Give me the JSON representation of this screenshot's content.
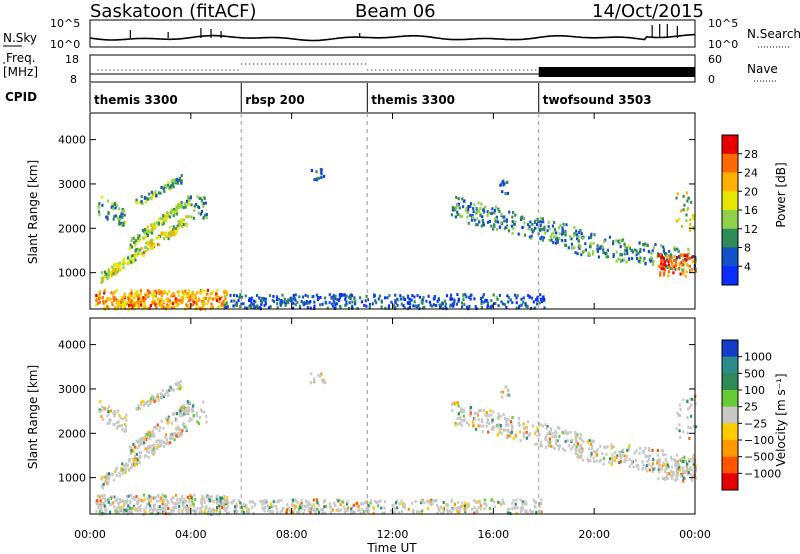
{
  "header": {
    "site": "Saskatoon (fitACF)",
    "beam": "Beam 06",
    "date": "14/Oct/2015"
  },
  "strips": {
    "nsky_label": "N.Sky",
    "nsky_ticks": [
      "10^5",
      "10^0"
    ],
    "nsearch_label": "N.Search",
    "freq_label_1": "Freq.",
    "freq_label_2": "[MHz]",
    "freq_ticks": [
      "18",
      "8"
    ],
    "nave_label": "Nave",
    "nave_ticks": [
      "60",
      "0"
    ],
    "cpid_label": "CPID"
  },
  "cpid_segments": [
    {
      "label": "themis 3300",
      "start_h": 0,
      "end_h": 6
    },
    {
      "label": "rbsp 200",
      "start_h": 6,
      "end_h": 11
    },
    {
      "label": "themis 3300",
      "start_h": 11,
      "end_h": 17.8
    },
    {
      "label": "twofsound 3503",
      "start_h": 17.8,
      "end_h": 24
    }
  ],
  "chart_data": [
    {
      "type": "heatmap",
      "parameter": "Power",
      "ylabel": "Slant Range [km]",
      "ylim": [
        180,
        4600
      ],
      "yticks": [
        "1000",
        "2000",
        "3000",
        "4000"
      ],
      "colorbar_label": "Power [dB]",
      "colorbar_ticks": [
        "28",
        "24",
        "20",
        "16",
        "12",
        "8",
        "4"
      ],
      "colorbar_colors": [
        "#e60000",
        "#ff6a00",
        "#ffb000",
        "#e6e600",
        "#8fd24a",
        "#2e8b57",
        "#1450c8",
        "#0a2dff"
      ],
      "echo_regions": [
        {
          "h0": 0.2,
          "h1": 5.3,
          "r0": 200,
          "r1": 700,
          "level": 0.75,
          "note": "near-range strong band"
        },
        {
          "h0": 0.4,
          "h1": 3.8,
          "r0": 800,
          "r1": 2700,
          "level": 0.45,
          "note": "arc structure"
        },
        {
          "h0": 14.5,
          "h1": 19.5,
          "r0": 1600,
          "r1": 2600,
          "level": 0.35,
          "note": "descending band"
        },
        {
          "h0": 19.5,
          "h1": 24,
          "r0": 900,
          "r1": 2200,
          "level": 0.6,
          "note": "late band"
        },
        {
          "h0": 6.0,
          "h1": 18.0,
          "r0": 200,
          "r1": 500,
          "level": 0.25,
          "note": "ground scatter"
        }
      ]
    },
    {
      "type": "heatmap",
      "parameter": "Velocity",
      "ylabel": "Slant Range [km]",
      "ylim": [
        180,
        4600
      ],
      "yticks": [
        "1000",
        "2000",
        "3000",
        "4000"
      ],
      "colorbar_label": "Velocity [m s⁻¹]",
      "colorbar_ticks": [
        "1000",
        "500",
        "100",
        "25",
        "−25",
        "−100",
        "−500",
        "−1000"
      ],
      "colorbar_colors": [
        "#143cc8",
        "#2e8b8b",
        "#2e8b57",
        "#66cc33",
        "#c8c8c8",
        "#ffcc00",
        "#ff9900",
        "#ff5500",
        "#e60000"
      ],
      "echo_regions": [
        {
          "h0": 0.2,
          "h1": 5.3,
          "r0": 200,
          "r1": 700,
          "value": "mixed",
          "note": "near-range band"
        },
        {
          "h0": 0.4,
          "h1": 3.8,
          "r0": 800,
          "r1": 2700,
          "value": "grey",
          "note": "arc structure"
        },
        {
          "h0": 14.5,
          "h1": 19.5,
          "r0": 1600,
          "r1": 2600,
          "value": "grey-orange",
          "note": "descending band"
        },
        {
          "h0": 19.5,
          "h1": 24,
          "r0": 900,
          "r1": 2200,
          "value": "mixed",
          "note": "late band"
        }
      ]
    }
  ],
  "xaxis": {
    "xlabel": "Time UT",
    "xticks": [
      "00:00",
      "04:00",
      "08:00",
      "12:00",
      "16:00",
      "20:00",
      "00:00"
    ],
    "xlim_hours": [
      0,
      24
    ]
  }
}
